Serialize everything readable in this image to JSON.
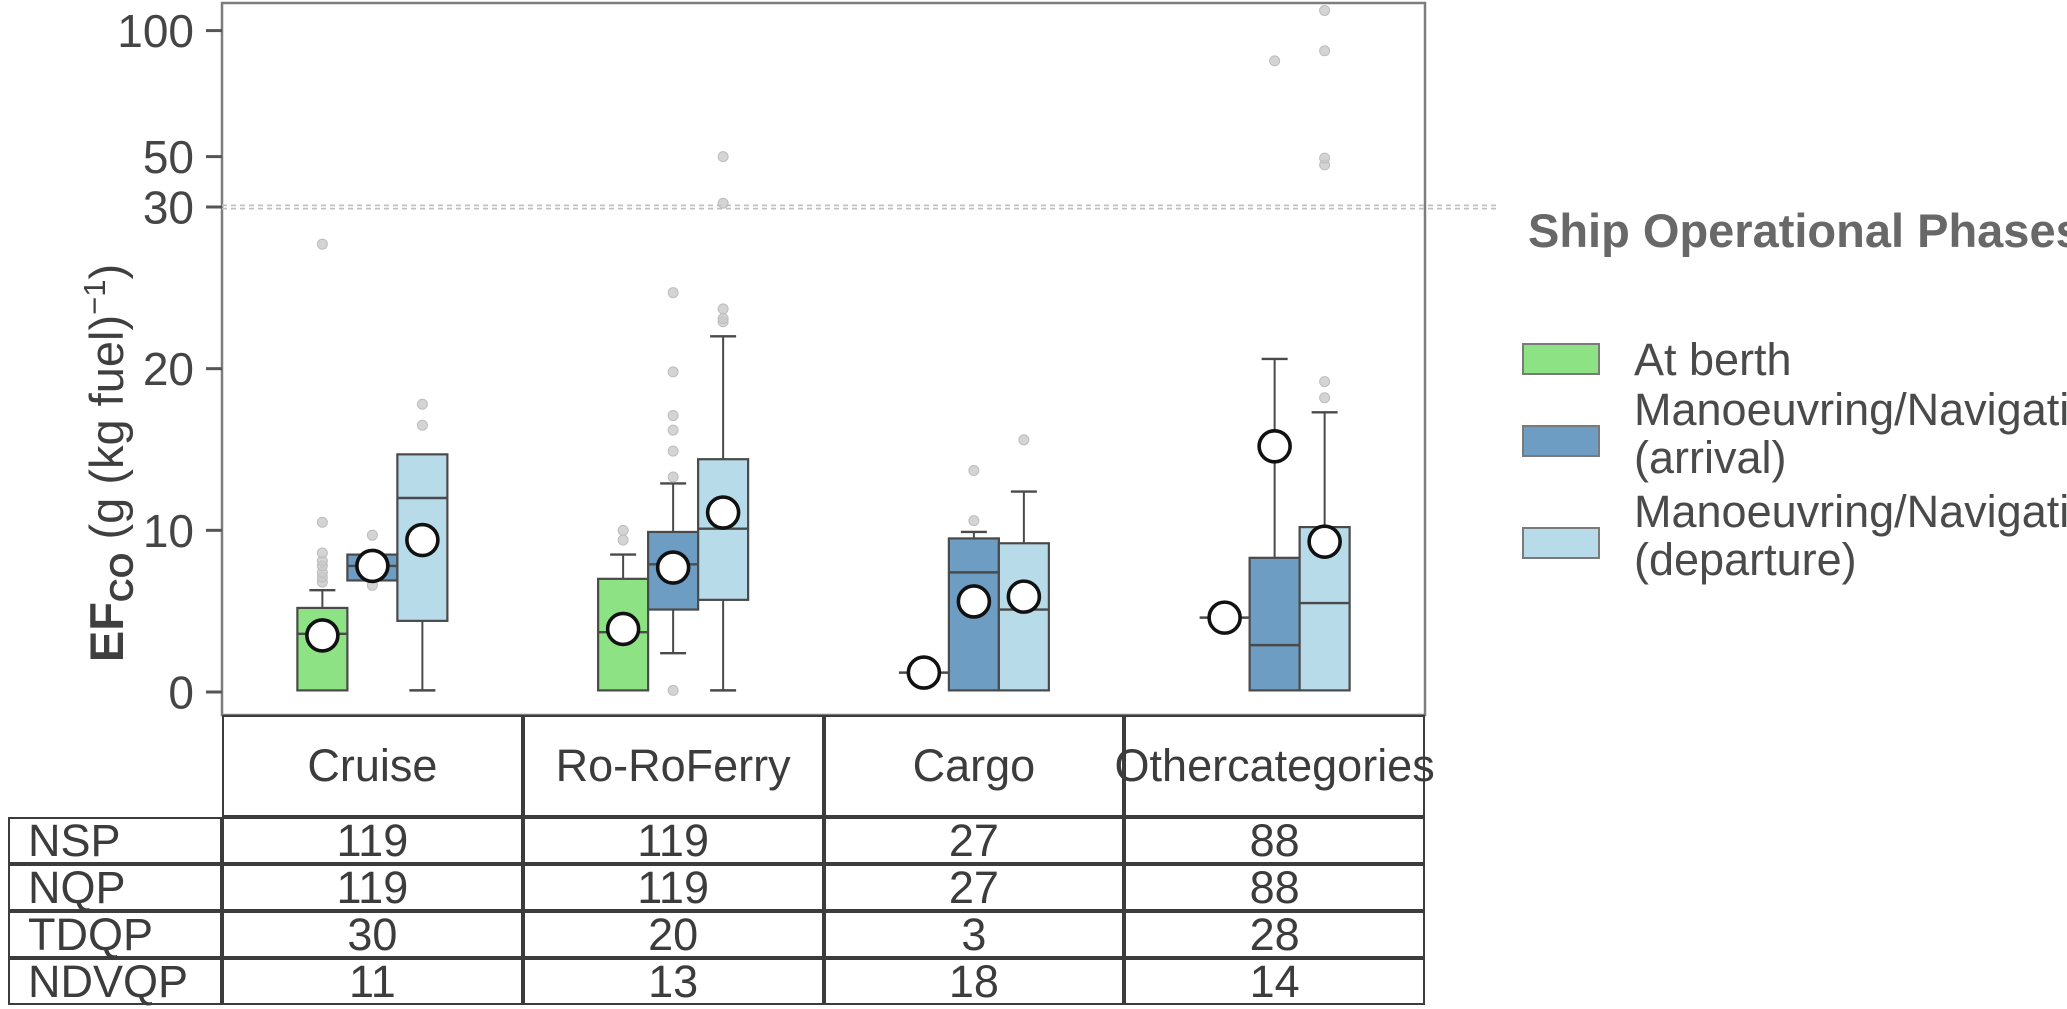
{
  "chart_data": {
    "type": "grouped_boxplot",
    "title": "",
    "ylabel": "EF_CO (g (kg fuel)^-1)",
    "y_axis": {
      "ticks": [
        0,
        10,
        20,
        30,
        50,
        100
      ],
      "linear_region_max": 30,
      "compressed_above": 30,
      "axis_max": 111,
      "grid": false
    },
    "reference_line_y": 30,
    "categories": [
      [
        "Cruise"
      ],
      [
        "Ro-Ro",
        "Ferry"
      ],
      [
        "Cargo"
      ],
      [
        "Other",
        "categories"
      ]
    ],
    "series": [
      {
        "name": "At berth",
        "color": "#8DE284",
        "boxes": [
          {
            "q1": 0.1,
            "median": 3.6,
            "q3": 5.2,
            "whisker_low": null,
            "whisker_high": 6.3,
            "mean": 3.5,
            "outliers": [
              6.8,
              7.1,
              7.4,
              7.8,
              8.1,
              8.6,
              10.5,
              27.7
            ]
          },
          {
            "q1": 0.1,
            "median": 3.7,
            "q3": 7.0,
            "whisker_low": null,
            "whisker_high": 8.5,
            "mean": 3.9,
            "outliers": [
              9.4,
              10.0
            ]
          },
          {
            "degenerate": true,
            "point": 1.2,
            "mean": 1.2,
            "outliers": []
          },
          {
            "degenerate": true,
            "point": 4.6,
            "mean": 4.6,
            "outliers": []
          }
        ]
      },
      {
        "name": "Manoeuvring/Navigation (arrival)",
        "color": "#6D9DC2",
        "boxes": [
          {
            "q1": 6.9,
            "median": 7.8,
            "q3": 8.5,
            "whisker_low": null,
            "whisker_high": null,
            "mean": 7.8,
            "outliers": [
              6.6,
              9.7
            ]
          },
          {
            "q1": 5.1,
            "median": 7.9,
            "q3": 9.9,
            "whisker_low": 2.4,
            "whisker_high": 12.9,
            "mean": 7.7,
            "outliers": [
              0.1,
              13.3,
              14.9,
              16.2,
              17.1,
              19.8,
              24.7
            ]
          },
          {
            "q1": 0.1,
            "median": 7.4,
            "q3": 9.5,
            "whisker_low": null,
            "whisker_high": 9.9,
            "mean": 5.6,
            "outliers": [
              10.6,
              13.7
            ]
          },
          {
            "q1": 0.1,
            "median": 2.9,
            "q3": 8.3,
            "whisker_low": null,
            "whisker_high": 20.6,
            "mean": 15.2,
            "outliers": [
              88
            ]
          }
        ]
      },
      {
        "name": "Manoeuvring/Navigation (departure)",
        "color": "#B7DBE9",
        "boxes": [
          {
            "q1": 4.4,
            "median": 12.0,
            "q3": 14.7,
            "whisker_low": 0.1,
            "whisker_high": null,
            "mean": 9.4,
            "outliers": [
              16.5,
              17.8
            ]
          },
          {
            "q1": 5.7,
            "median": 10.1,
            "q3": 14.4,
            "whisker_low": 0.1,
            "whisker_high": 22.0,
            "mean": 11.1,
            "outliers": [
              22.9,
              23.1,
              23.7,
              31.5,
              50.0
            ]
          },
          {
            "q1": 0.1,
            "median": 5.1,
            "q3": 9.2,
            "whisker_low": null,
            "whisker_high": 12.4,
            "mean": 5.9,
            "outliers": [
              15.6
            ]
          },
          {
            "q1": 0.1,
            "median": 5.5,
            "q3": 10.2,
            "whisker_low": null,
            "whisker_high": 17.3,
            "mean": 9.3,
            "outliers": [
              18.2,
              19.2,
              46.7,
              49.4,
              92.0,
              108.0
            ]
          }
        ]
      }
    ],
    "table": {
      "row_labels": [
        "NSP",
        "NQP",
        "TDQP",
        "NDVQP"
      ],
      "values": [
        [
          119,
          119,
          27,
          88
        ],
        [
          119,
          119,
          27,
          88
        ],
        [
          30,
          20,
          3,
          28
        ],
        [
          11,
          13,
          18,
          14
        ]
      ]
    }
  },
  "axis_label": {
    "ef": "EF",
    "sub": "CO",
    "rest": " (g (kg fuel)",
    "sup": "−1",
    "close": ")"
  },
  "legend": {
    "title": "Ship Operational Phases",
    "items": [
      {
        "label_line1": "At berth",
        "label_line2": "",
        "color": "#8DE284"
      },
      {
        "label_line1": "Manoeuvring/Navigation",
        "label_line2": "(arrival)",
        "color": "#6D9DC2"
      },
      {
        "label_line1": "Manoeuvring/Navigation",
        "label_line2": "(departure)",
        "color": "#B7DBE9"
      }
    ]
  },
  "colors": {
    "box_stroke": "#4a4a4a",
    "plot_border": "#7d7d7d",
    "outlier_dot": "#c9c9c9",
    "dashed_line": "#c0c0c0",
    "mean_fill": "#ffffff",
    "mean_stroke": "#111111",
    "text": "#3f3f3f",
    "table_border": "#3c3c3c"
  }
}
